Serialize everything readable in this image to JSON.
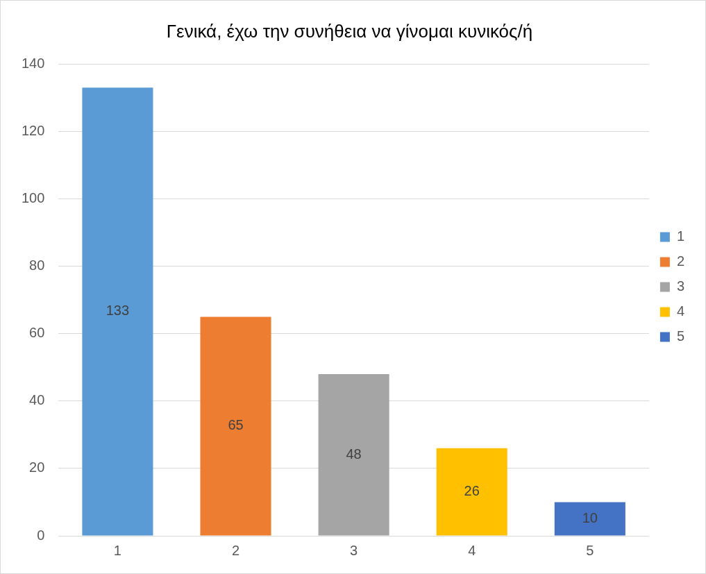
{
  "chart_data": {
    "type": "bar",
    "title": "Γενικά, έχω την συνήθεια να γίνομαι κυνικός/ή",
    "categories": [
      "1",
      "2",
      "3",
      "4",
      "5"
    ],
    "series": [
      {
        "name": "1",
        "color": "#5b9bd5",
        "values": [
          133,
          null,
          null,
          null,
          null
        ]
      },
      {
        "name": "2",
        "color": "#ed7d31",
        "values": [
          null,
          65,
          null,
          null,
          null
        ]
      },
      {
        "name": "3",
        "color": "#a5a5a5",
        "values": [
          null,
          null,
          48,
          null,
          null
        ]
      },
      {
        "name": "4",
        "color": "#ffc000",
        "values": [
          null,
          null,
          null,
          26,
          null
        ]
      },
      {
        "name": "5",
        "color": "#4472c4",
        "values": [
          null,
          null,
          null,
          null,
          10
        ]
      }
    ],
    "ylim": [
      0,
      140
    ],
    "yticks": [
      0,
      20,
      40,
      60,
      80,
      100,
      120,
      140
    ],
    "grid": "y",
    "legend": "right",
    "data_labels": true
  }
}
